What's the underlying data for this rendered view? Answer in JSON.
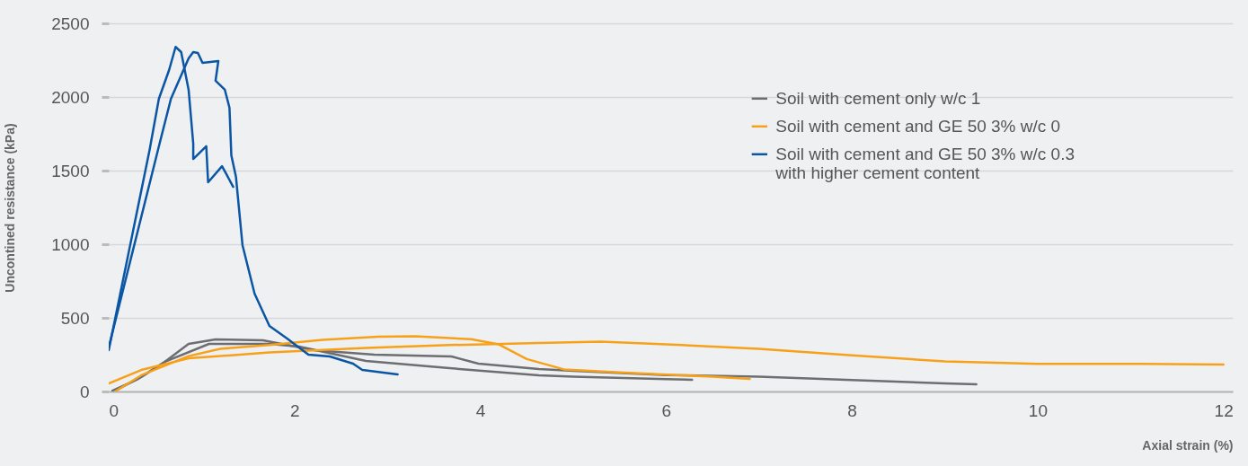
{
  "chart_data": {
    "type": "line",
    "xlabel": "Axial strain (%)",
    "ylabel": "Uncontined resistance (kPa)",
    "xlim": [
      0,
      12.1
    ],
    "xticks": [
      0,
      2,
      4,
      6,
      8,
      10,
      12
    ],
    "ylim": [
      0,
      2500
    ],
    "yticks": [
      0,
      500,
      1000,
      1500,
      2000,
      2500
    ],
    "grid": "y",
    "legend": "top right",
    "line_style": "solid",
    "marker": "none",
    "series": [
      {
        "name": "Soil with cement only w/c 1",
        "color": "#6d6e71",
        "x": [
          0.04,
          0.3,
          0.6,
          0.86,
          1.15,
          1.66,
          2.21,
          2.86,
          3.69,
          3.98,
          4.63,
          5,
          6,
          7,
          8,
          9,
          9.34
        ],
        "values": [
          6,
          80,
          200,
          323,
          354,
          348,
          280,
          250,
          238,
          189,
          152,
          140,
          112,
          100,
          78,
          55,
          49
        ]
      },
      {
        "color": "#6d6e71",
        "x": [
          0.07,
          0.35,
          0.6,
          1.08,
          1.73,
          2.05,
          2.77,
          3.67,
          4.63,
          5,
          6,
          6.28
        ],
        "values": [
          6,
          98,
          200,
          323,
          323,
          305,
          207,
          158,
          110,
          100,
          84,
          79
        ]
      },
      {
        "name": "Soil with cement and GE 50 3% w/c 0",
        "color": "#f7a11a",
        "x": [
          0,
          0.35,
          0.86,
          1.73,
          2.77,
          3.67,
          4.63,
          5.3,
          6,
          7,
          8,
          9,
          10,
          11,
          12
        ],
        "values": [
          55,
          146,
          225,
          265,
          295,
          315,
          329,
          338,
          320,
          290,
          245,
          205,
          188,
          188,
          183
        ]
      },
      {
        "color": "#f7a11a",
        "x": [
          0.07,
          0.35,
          0.86,
          1.2,
          1.73,
          2.3,
          2.9,
          3.3,
          3.9,
          4.2,
          4.5,
          4.9,
          5.5,
          6.5,
          6.9
        ],
        "values": [
          0,
          110,
          240,
          290,
          315,
          350,
          372,
          375,
          355,
          320,
          220,
          150,
          130,
          100,
          85
        ]
      },
      {
        "name": "Soil with cement and GE 50 3% w/c 0.3\nwith higher cement content",
        "color": "#0a56a5",
        "x": [
          0,
          0.44,
          0.54,
          0.65,
          0.72,
          0.78,
          0.86,
          0.91,
          0.91,
          1.05,
          1.07,
          1.22,
          1.34
        ],
        "values": [
          280,
          1640,
          1988,
          2183,
          2340,
          2305,
          2049,
          1683,
          1579,
          1665,
          1421,
          1530,
          1390
        ]
      },
      {
        "color": "#0a56a5",
        "x": [
          0,
          0.54,
          0.67,
          0.86,
          0.91,
          0.96,
          1.01,
          1.18,
          1.15,
          1.25,
          1.3,
          1.32,
          1.37,
          1.44,
          1.57,
          1.73,
          1.92,
          2.15,
          2.38,
          2.63,
          2.73,
          3.11
        ],
        "values": [
          299,
          1665,
          1988,
          2262,
          2305,
          2299,
          2232,
          2244,
          2110,
          2049,
          1927,
          1604,
          1457,
          994,
          665,
          445,
          360,
          250,
          238,
          189,
          146,
          116
        ]
      }
    ]
  }
}
